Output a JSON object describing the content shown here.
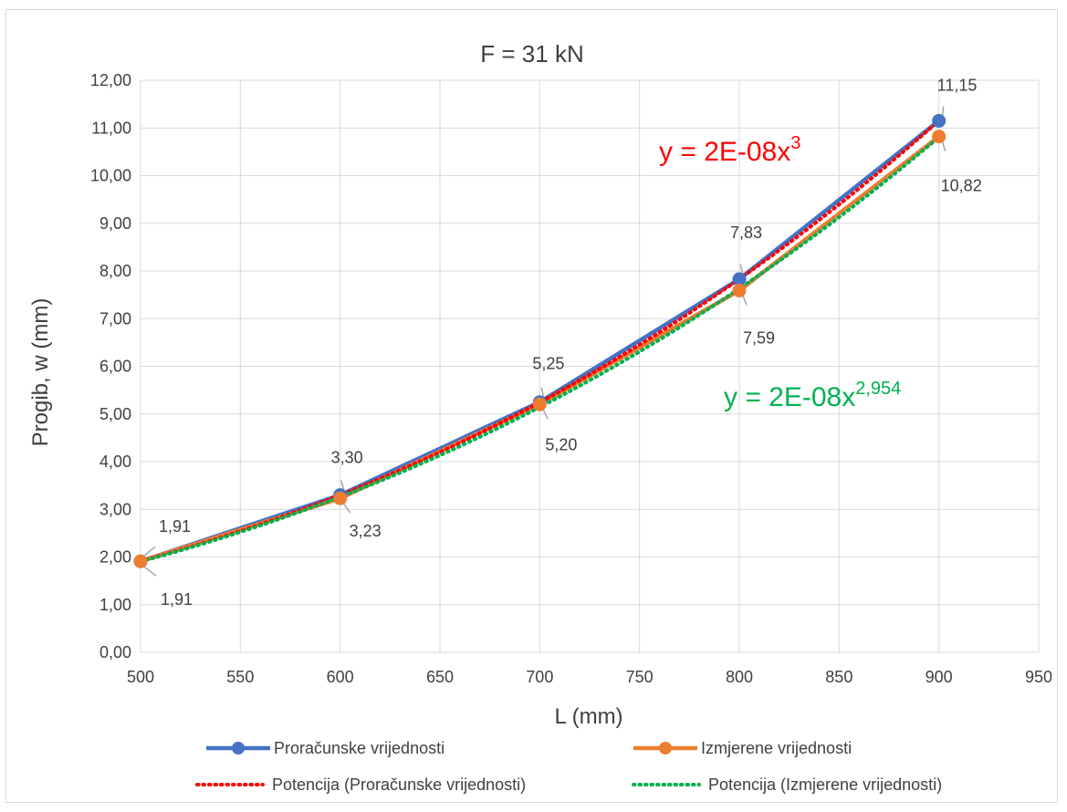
{
  "chart_data": {
    "type": "line",
    "title": "F = 31 kN",
    "xlabel": "L (mm)",
    "ylabel": "Progib, w (mm)",
    "xlim": [
      500,
      950
    ],
    "ylim": [
      0,
      12
    ],
    "x_ticks": [
      "500",
      "550",
      "600",
      "650",
      "700",
      "750",
      "800",
      "850",
      "900",
      "950"
    ],
    "y_ticks": [
      "0,00",
      "1,00",
      "2,00",
      "3,00",
      "4,00",
      "5,00",
      "6,00",
      "7,00",
      "8,00",
      "9,00",
      "10,00",
      "11,00",
      "12,00"
    ],
    "grid": true,
    "legend_position": "bottom",
    "series": [
      {
        "name": "Proračunske vrijednosti",
        "color": "#4472C4",
        "style": "solid-markers",
        "x": [
          500,
          600,
          700,
          800,
          900
        ],
        "values": [
          1.91,
          3.3,
          5.25,
          7.83,
          11.15
        ],
        "labels": [
          "1,91",
          "3,30",
          "5,25",
          "7,83",
          "11,15"
        ]
      },
      {
        "name": "Izmjerene vrijednosti",
        "color": "#ED7D31",
        "style": "solid-markers",
        "x": [
          500,
          600,
          700,
          800,
          900
        ],
        "values": [
          1.91,
          3.23,
          5.2,
          7.59,
          10.82
        ],
        "labels": [
          "1,91",
          "3,23",
          "5,20",
          "7,59",
          "10,82"
        ]
      },
      {
        "name": "Potencija (Proračunske vrijednosti)",
        "color": "#FF0000",
        "style": "dotted",
        "equation": {
          "base": "y = 2E-08x",
          "exponent": "3"
        }
      },
      {
        "name": "Potencija (Izmjerene vrijednosti)",
        "color": "#00B050",
        "style": "dotted",
        "equation": {
          "base": "y = 2E-08x",
          "exponent": "2,954"
        }
      }
    ]
  }
}
